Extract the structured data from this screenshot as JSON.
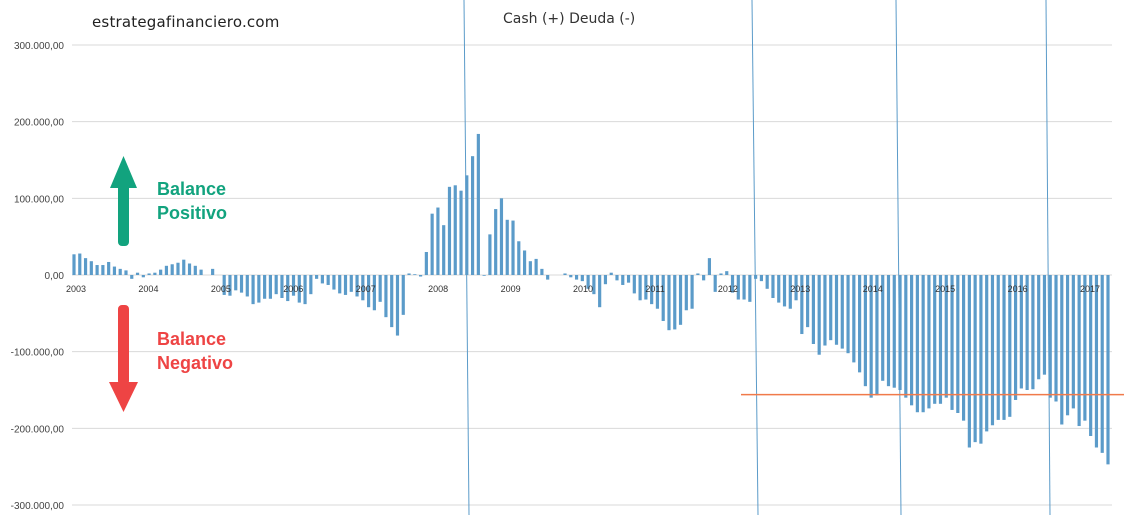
{
  "header": {
    "site": "estrategafinanciero.com",
    "title": "Cash (+) Deuda (-)"
  },
  "annotations": {
    "positive": {
      "line1": "Balance",
      "line2": "Positivo",
      "color": "#12a37e"
    },
    "negative": {
      "line1": "Balance",
      "line2": "Negativo",
      "color": "#ee4444"
    }
  },
  "chart_data": {
    "type": "bar",
    "title": "Cash (+) Deuda (-)",
    "ylim": [
      -300000,
      300000
    ],
    "yticks": [
      300000,
      200000,
      100000,
      0,
      -100000,
      -200000,
      -300000
    ],
    "ytick_labels": [
      "300.000,00",
      "200.000,00",
      "100.000,00",
      "0,00",
      "-100.000,00",
      "-200.000,00",
      "-300.000,00"
    ],
    "xtick_labels": [
      "2003",
      "2004",
      "2005",
      "2006",
      "2007",
      "2008",
      "2009",
      "2010",
      "2011",
      "2012",
      "2013",
      "2014",
      "2015",
      "2016",
      "2017"
    ],
    "bar_color": "#5b9bc9",
    "reference_line": {
      "value": -156000,
      "color": "#f07a4a"
    },
    "grid": true,
    "values": [
      27000,
      28000,
      22000,
      18000,
      13000,
      13000,
      17000,
      11000,
      8000,
      6000,
      -5000,
      3000,
      -3000,
      2000,
      3000,
      7000,
      12000,
      14000,
      16000,
      20000,
      15000,
      12000,
      7000,
      0,
      8000,
      0,
      -26000,
      -27000,
      -20000,
      -23000,
      -28000,
      -38000,
      -36000,
      -31000,
      -31000,
      -25000,
      -30000,
      -34000,
      -27000,
      -36000,
      -38000,
      -25000,
      -5000,
      -11000,
      -13000,
      -19000,
      -24000,
      -26000,
      -22000,
      -28000,
      -33000,
      -42000,
      -46000,
      -35000,
      -55000,
      -68000,
      -79000,
      -52000,
      2000,
      1000,
      -2000,
      30000,
      80000,
      88000,
      65000,
      115000,
      117000,
      110000,
      130000,
      155000,
      184000,
      -1000,
      53000,
      86000,
      100000,
      72000,
      71000,
      44000,
      32000,
      18000,
      21000,
      8000,
      -6000,
      0,
      0,
      2000,
      -3000,
      -6000,
      -8000,
      -18000,
      -25000,
      -42000,
      -12000,
      3000,
      -7000,
      -13000,
      -10000,
      -24000,
      -33000,
      -32000,
      -38000,
      -44000,
      -60000,
      -72000,
      -71000,
      -65000,
      -46000,
      -44000,
      2000,
      -7000,
      22000,
      -22000,
      2000,
      5000,
      -23000,
      -32000,
      -32000,
      -35000,
      -5000,
      -8000,
      -18000,
      -30000,
      -36000,
      -41000,
      -44000,
      -33000,
      -77000,
      -68000,
      -90000,
      -104000,
      -92000,
      -85000,
      -91000,
      -96000,
      -102000,
      -114000,
      -127000,
      -145000,
      -160000,
      -157000,
      -138000,
      -145000,
      -147000,
      -150000,
      -160000,
      -170000,
      -179000,
      -179000,
      -174000,
      -168000,
      -168000,
      -160000,
      -176000,
      -180000,
      -190000,
      -225000,
      -218000,
      -220000,
      -204000,
      -196000,
      -189000,
      -189000,
      -185000,
      -163000,
      -148000,
      -150000,
      -149000,
      -136000,
      -130000,
      -160000,
      -165000,
      -195000,
      -183000,
      -174000,
      -197000,
      -190000,
      -210000,
      -225000,
      -232000,
      -247000
    ],
    "vertical_lines": [
      {
        "x0": 464,
        "y0": 0,
        "x1": 469,
        "y1": 515
      },
      {
        "x0": 752,
        "y0": 0,
        "x1": 758,
        "y1": 515
      },
      {
        "x0": 896,
        "y0": 0,
        "x1": 901,
        "y1": 515
      },
      {
        "x0": 1046,
        "y0": 0,
        "x1": 1050,
        "y1": 515
      }
    ]
  }
}
